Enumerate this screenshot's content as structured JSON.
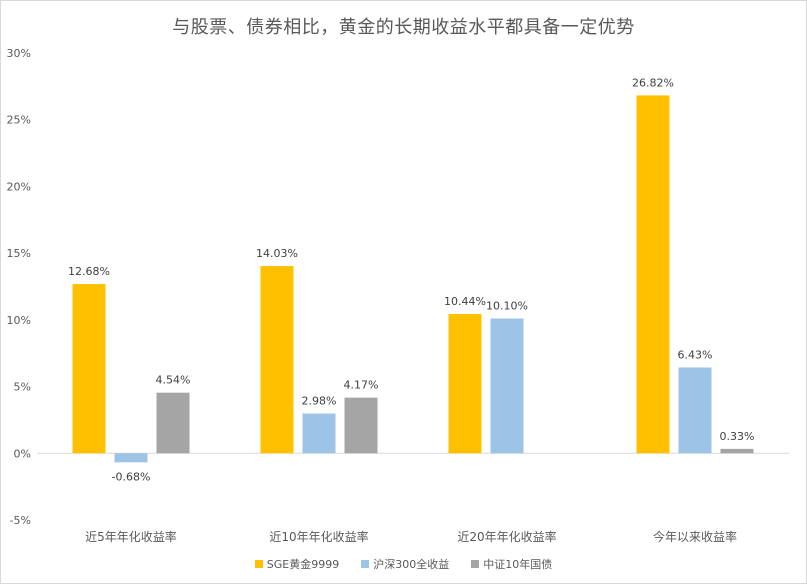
{
  "chart_data": {
    "type": "bar",
    "title": "与股票、债券相比，黄金的长期收益水平都具备一定优势",
    "categories": [
      "近5年年化收益率",
      "近10年年化收益率",
      "近20年年化收益率",
      "今年以来收益率"
    ],
    "series": [
      {
        "name": "SGE黄金9999",
        "color": "#FFC000",
        "values": [
          12.68,
          14.03,
          10.44,
          26.82
        ],
        "labels": [
          "12.68%",
          "14.03%",
          "10.44%",
          "26.82%"
        ]
      },
      {
        "name": "沪深300全收益",
        "color": "#9DC3E6",
        "values": [
          -0.68,
          2.98,
          10.1,
          6.43
        ],
        "labels": [
          "-0.68%",
          "2.98%",
          "10.10%",
          "6.43%"
        ]
      },
      {
        "name": "中证10年国债",
        "color": "#A5A5A5",
        "values": [
          4.54,
          4.17,
          null,
          0.33
        ],
        "labels": [
          "4.54%",
          "4.17%",
          "",
          "0.33%"
        ]
      }
    ],
    "yticks": [
      "-5%",
      "0%",
      "5%",
      "10%",
      "15%",
      "20%",
      "25%",
      "30%"
    ],
    "ylim": [
      -5,
      30
    ],
    "grid": false,
    "legend_position": "bottom",
    "xlabel": "",
    "ylabel": ""
  }
}
